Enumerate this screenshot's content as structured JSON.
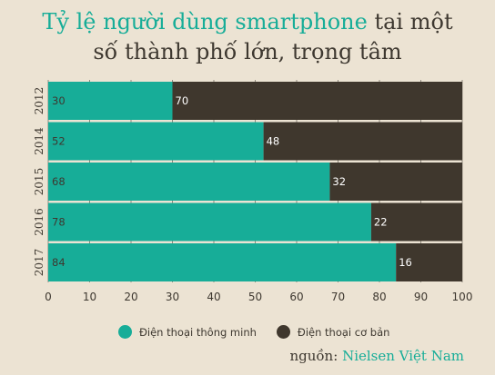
{
  "title": {
    "highlight": "Tỷ lệ người dùng smartphone",
    "rest_line1": " tại một",
    "line2": "số thành phố lớn, trọng tâm"
  },
  "colors": {
    "smartphone": "#17ad98",
    "basic": "#3f372d",
    "grid": "#8f887c"
  },
  "legend": {
    "smartphone": "Điện thoại thông minh",
    "basic": "Điện thoại cơ bản"
  },
  "source": {
    "label": "nguồn:",
    "name": "Nielsen Việt Nam"
  },
  "chart_data": {
    "type": "bar",
    "orientation": "horizontal",
    "stacked": true,
    "categories": [
      "2012",
      "2014",
      "2015",
      "2016",
      "2017"
    ],
    "series": [
      {
        "name": "Điện thoại thông minh",
        "values": [
          30,
          52,
          68,
          78,
          84
        ]
      },
      {
        "name": "Điện thoại cơ bản",
        "values": [
          70,
          48,
          32,
          22,
          16
        ]
      }
    ],
    "xlim": [
      0,
      100
    ],
    "xticks": [
      0,
      10,
      20,
      30,
      40,
      50,
      60,
      70,
      80,
      90,
      100
    ],
    "grid": true,
    "legend_position": "bottom"
  }
}
